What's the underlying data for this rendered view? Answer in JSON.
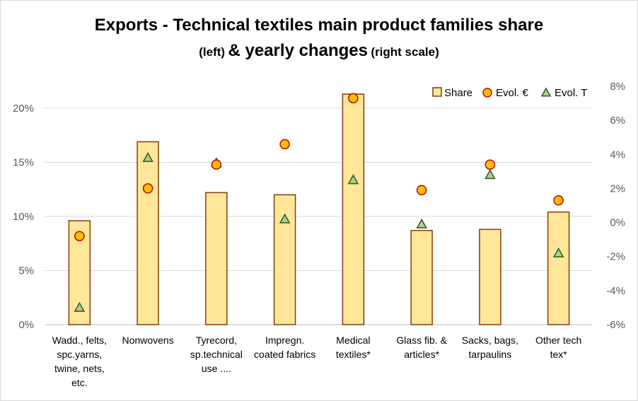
{
  "title": "Exports - Technical textiles main product families share",
  "subtitle": {
    "part1": "(left)",
    "part2": "& yearly changes",
    "part3": "(right scale)"
  },
  "chart_data": {
    "type": "bar",
    "categories": [
      [
        "Wadd., felts,",
        "spc.yarns,",
        "twine, nets,",
        "etc."
      ],
      [
        "Nonwovens"
      ],
      [
        "Tyrecord,",
        "sp.technical",
        "use ...."
      ],
      [
        "Impregn.",
        "coated fabrics"
      ],
      [
        "Medical",
        "textiles*"
      ],
      [
        "Glass fib. &",
        "articles*"
      ],
      [
        "Sacks, bags,",
        "tarpaulins"
      ],
      [
        "Other tech",
        "tex*"
      ]
    ],
    "series": [
      {
        "name": "Share",
        "axis": "left",
        "kind": "bar",
        "color": "#FFE699",
        "border": "#843C0C",
        "values": [
          9.6,
          16.9,
          12.2,
          12.0,
          21.3,
          8.7,
          8.8,
          10.4
        ]
      },
      {
        "name": "Evol. €",
        "axis": "right",
        "kind": "marker-circle",
        "color": "#FFC000",
        "border": "#C00000",
        "values": [
          -0.8,
          2.0,
          3.4,
          4.6,
          7.3,
          1.9,
          3.4,
          1.3
        ]
      },
      {
        "name": "Evol. T",
        "axis": "right",
        "kind": "marker-triangle",
        "color": "#A9D18E",
        "border": "#375623",
        "values": [
          -5.0,
          3.8,
          3.5,
          0.2,
          2.5,
          -0.1,
          2.8,
          -1.8
        ]
      }
    ],
    "left_axis": {
      "min": 0,
      "max": 22,
      "ticks": [
        0,
        5,
        10,
        15,
        20
      ],
      "tick_labels": [
        "0%",
        "5%",
        "10%",
        "15%",
        "20%"
      ]
    },
    "right_axis": {
      "min": -6,
      "max": 8,
      "ticks": [
        -6,
        -4,
        -2,
        0,
        2,
        4,
        6,
        8
      ],
      "tick_labels": [
        "-6%",
        "-4%",
        "-2%",
        "0%",
        "2%",
        "4%",
        "6%",
        "8%"
      ]
    },
    "grid": true,
    "legend_position": "top-right"
  }
}
